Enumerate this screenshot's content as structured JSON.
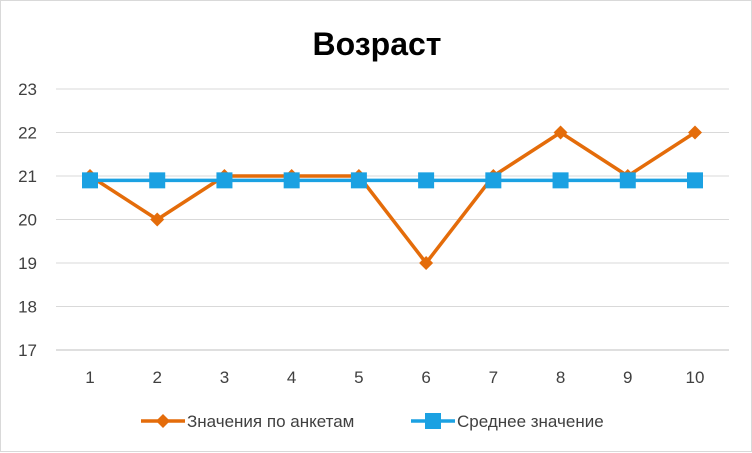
{
  "chart_data": {
    "type": "line",
    "title": "Возраст",
    "xlabel": "",
    "ylabel": "",
    "categories": [
      "1",
      "2",
      "3",
      "4",
      "5",
      "6",
      "7",
      "8",
      "9",
      "10"
    ],
    "ylim": [
      17,
      23
    ],
    "yticks": [
      "17",
      "18",
      "19",
      "20",
      "21",
      "22",
      "23"
    ],
    "grid": true,
    "legend_position": "bottom",
    "series": [
      {
        "name": "Значения по анкетам",
        "values": [
          21,
          20,
          21,
          21,
          21,
          19,
          21,
          22,
          21,
          22
        ],
        "color": "#e46c0a",
        "marker": "diamond"
      },
      {
        "name": "Среднее значение",
        "values": [
          20.9,
          20.9,
          20.9,
          20.9,
          20.9,
          20.9,
          20.9,
          20.9,
          20.9,
          20.9
        ],
        "color": "#1ba1e2",
        "marker": "square"
      }
    ]
  }
}
